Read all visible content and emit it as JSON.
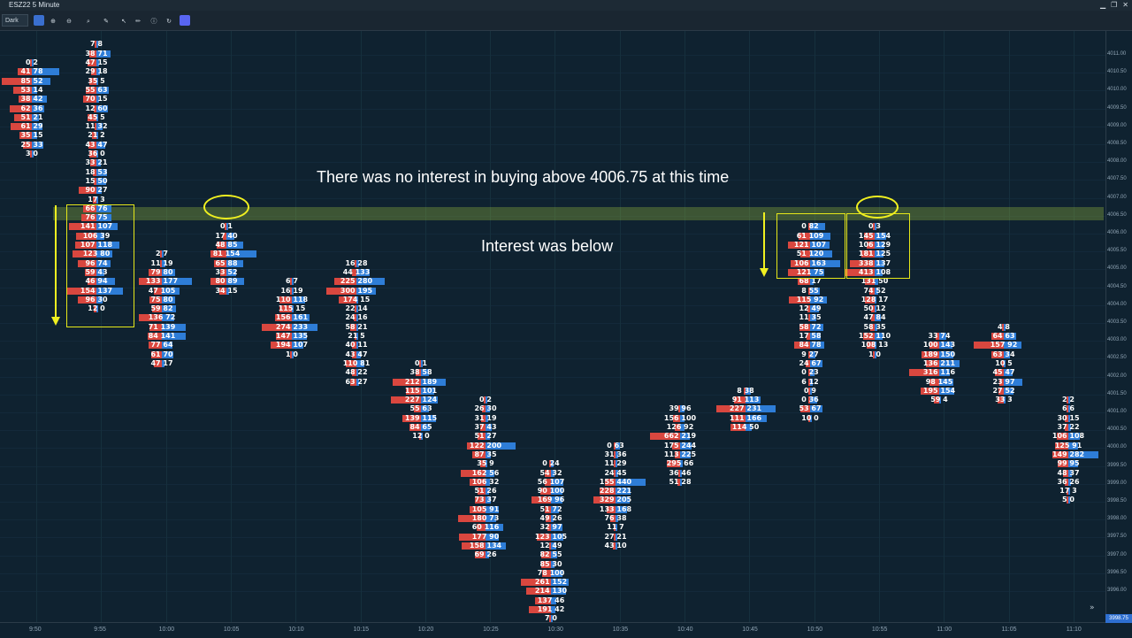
{
  "window": {
    "title": "ESZ22 5 Minute"
  },
  "toolbar": {
    "theme_label": "Dark",
    "icons": [
      "chart-style-icon",
      "zoom-in-icon",
      "zoom-out-icon",
      "magnifier-icon",
      "drawing-tool-icon",
      "pointer-icon",
      "pencil-icon",
      "info-icon",
      "refresh-icon",
      "discord-icon"
    ]
  },
  "annotations": {
    "top_text": "There was no interest in buying above 4006.75 at this time",
    "mid_text": "Interest was below"
  },
  "price_tag": "3998.75",
  "colors": {
    "background": "#0f2230",
    "sell": "#d9473f",
    "buy": "#2e7dd7",
    "highlight": "#e6e81a",
    "band": "#9abe3c"
  },
  "chart_data": {
    "type": "table",
    "instrument": "ESZ22",
    "timeframe": "5 Minute",
    "y_ticks": [
      "4011.00",
      "4010.50",
      "4010.00",
      "4009.50",
      "4009.00",
      "4008.50",
      "4008.00",
      "4007.50",
      "4007.00",
      "4006.50",
      "4006.00",
      "4005.50",
      "4005.00",
      "4004.50",
      "4004.00",
      "4003.50",
      "4003.00",
      "4002.50",
      "4002.00",
      "4001.50",
      "4001.00",
      "4000.50",
      "4000.00",
      "3999.50",
      "3999.00",
      "3998.50",
      "3998.00",
      "3997.50",
      "3997.00",
      "3996.50",
      "3996.00"
    ],
    "x_ticks": [
      "9:50",
      "9:55",
      "10:00",
      "10:05",
      "10:10",
      "10:15",
      "10:20",
      "10:25",
      "10:30",
      "10:35",
      "10:40",
      "10:45",
      "10:50",
      "10:55",
      "11:00",
      "11:05",
      "11:10"
    ],
    "bars": [
      {
        "time": "9:50",
        "x": 8,
        "top": 0,
        "rows": [
          [
            0,
            2
          ],
          [
            41,
            78
          ],
          [
            85,
            52
          ],
          [
            53,
            14
          ],
          [
            38,
            42
          ],
          [
            62,
            36
          ],
          [
            51,
            21
          ],
          [
            61,
            29
          ],
          [
            35,
            15
          ],
          [
            25,
            33
          ],
          [
            3,
            0
          ]
        ]
      },
      {
        "time": "9:55",
        "x": 81,
        "top": -2,
        "rows": [
          [
            7,
            8
          ],
          [
            38,
            71
          ],
          [
            47,
            15
          ],
          [
            29,
            18
          ],
          [
            35,
            5
          ],
          [
            55,
            63
          ],
          [
            70,
            15
          ],
          [
            12,
            60
          ],
          [
            45,
            5
          ],
          [
            11,
            32
          ],
          [
            21,
            2
          ],
          [
            43,
            47
          ],
          [
            36,
            0
          ],
          [
            33,
            21
          ],
          [
            18,
            53
          ],
          [
            15,
            50
          ],
          [
            90,
            27
          ],
          [
            17,
            3
          ],
          [
            66,
            76
          ],
          [
            76,
            75
          ],
          [
            141,
            107
          ],
          [
            106,
            39
          ],
          [
            107,
            118
          ],
          [
            123,
            80
          ],
          [
            96,
            74
          ],
          [
            59,
            43
          ],
          [
            46,
            94
          ],
          [
            154,
            137
          ],
          [
            96,
            30
          ],
          [
            12,
            0
          ]
        ]
      },
      {
        "time": "10:00",
        "x": 155,
        "top": 21,
        "rows": [
          [
            2,
            7
          ],
          [
            11,
            19
          ],
          [
            79,
            80
          ],
          [
            133,
            177
          ],
          [
            47,
            105
          ],
          [
            75,
            80
          ],
          [
            59,
            82
          ],
          [
            136,
            72
          ],
          [
            71,
            139
          ],
          [
            84,
            141
          ],
          [
            77,
            64
          ],
          [
            61,
            70
          ],
          [
            47,
            17
          ]
        ]
      },
      {
        "time": "10:05",
        "x": 228,
        "top": 18,
        "rows": [
          [
            0,
            1
          ],
          [
            17,
            40
          ],
          [
            48,
            85
          ],
          [
            81,
            154
          ],
          [
            65,
            88
          ],
          [
            33,
            52
          ],
          [
            80,
            89
          ],
          [
            34,
            15
          ]
        ]
      },
      {
        "time": "10:10",
        "x": 302,
        "top": 24,
        "rows": [
          [
            6,
            7
          ],
          [
            16,
            19
          ],
          [
            110,
            118
          ],
          [
            115,
            15
          ],
          [
            156,
            161
          ],
          [
            274,
            233
          ],
          [
            147,
            135
          ],
          [
            194,
            107
          ],
          [
            1,
            0
          ]
        ]
      },
      {
        "time": "10:15",
        "x": 375,
        "top": 22,
        "rows": [
          [
            16,
            28
          ],
          [
            44,
            133
          ],
          [
            225,
            280
          ],
          [
            300,
            195
          ],
          [
            174,
            15
          ],
          [
            22,
            14
          ],
          [
            24,
            16
          ],
          [
            58,
            21
          ],
          [
            21,
            5
          ],
          [
            40,
            11
          ],
          [
            43,
            47
          ],
          [
            110,
            81
          ],
          [
            48,
            22
          ],
          [
            63,
            27
          ]
        ]
      },
      {
        "time": "10:20",
        "x": 448,
        "top": 33,
        "rows": [
          [
            0,
            1
          ],
          [
            38,
            58
          ],
          [
            212,
            189
          ],
          [
            115,
            101
          ],
          [
            227,
            124
          ],
          [
            55,
            63
          ],
          [
            139,
            115
          ],
          [
            84,
            65
          ],
          [
            12,
            0
          ]
        ]
      },
      {
        "time": "10:25",
        "x": 521,
        "top": 37,
        "rows": [
          [
            0,
            2
          ],
          [
            26,
            30
          ],
          [
            31,
            19
          ],
          [
            37,
            43
          ],
          [
            51,
            27
          ],
          [
            122,
            200
          ],
          [
            87,
            35
          ],
          [
            35,
            9
          ],
          [
            162,
            56
          ],
          [
            106,
            32
          ],
          [
            51,
            26
          ],
          [
            73,
            37
          ],
          [
            105,
            91
          ],
          [
            180,
            73
          ],
          [
            60,
            116
          ],
          [
            177,
            90
          ],
          [
            158,
            134
          ],
          [
            69,
            26
          ]
        ]
      },
      {
        "time": "10:30",
        "x": 595,
        "top": 44,
        "rows": [
          [
            0,
            24
          ],
          [
            54,
            32
          ],
          [
            56,
            107
          ],
          [
            90,
            100
          ],
          [
            169,
            96
          ],
          [
            51,
            72
          ],
          [
            49,
            26
          ],
          [
            32,
            97
          ],
          [
            123,
            105
          ],
          [
            12,
            49
          ],
          [
            82,
            55
          ],
          [
            85,
            30
          ],
          [
            78,
            100
          ],
          [
            261,
            152
          ],
          [
            214,
            130
          ],
          [
            137,
            46
          ],
          [
            191,
            42
          ],
          [
            7,
            0
          ]
        ]
      },
      {
        "time": "10:35",
        "x": 668,
        "top": 42,
        "rows": [
          [
            0,
            63
          ],
          [
            31,
            36
          ],
          [
            11,
            29
          ],
          [
            24,
            45
          ],
          [
            155,
            440
          ],
          [
            228,
            221
          ],
          [
            329,
            205
          ],
          [
            133,
            168
          ],
          [
            76,
            38
          ],
          [
            11,
            7
          ],
          [
            27,
            21
          ],
          [
            43,
            10
          ]
        ]
      },
      {
        "time": "10:40",
        "x": 741,
        "top": 38,
        "rows": [
          [
            39,
            96
          ],
          [
            156,
            100
          ],
          [
            126,
            92
          ],
          [
            662,
            219
          ],
          [
            175,
            244
          ],
          [
            113,
            225
          ],
          [
            295,
            66
          ],
          [
            36,
            46
          ],
          [
            51,
            28
          ]
        ]
      },
      {
        "time": "10:45",
        "x": 815,
        "top": 36,
        "rows": [
          [
            8,
            38
          ],
          [
            91,
            113
          ],
          [
            227,
            231
          ],
          [
            111,
            166
          ],
          [
            114,
            50
          ]
        ]
      },
      {
        "time": "10:50",
        "x": 888,
        "top": 18,
        "rows": [
          [
            0,
            82
          ],
          [
            61,
            109
          ],
          [
            121,
            107
          ],
          [
            51,
            120
          ],
          [
            106,
            163
          ],
          [
            121,
            75
          ],
          [
            68,
            17
          ],
          [
            8,
            55
          ],
          [
            115,
            92
          ],
          [
            12,
            49
          ],
          [
            11,
            35
          ],
          [
            58,
            72
          ],
          [
            17,
            58
          ],
          [
            84,
            78
          ],
          [
            9,
            27
          ],
          [
            24,
            67
          ],
          [
            0,
            23
          ],
          [
            6,
            12
          ],
          [
            0,
            9
          ],
          [
            0,
            36
          ],
          [
            53,
            67
          ],
          [
            10,
            0
          ]
        ]
      },
      {
        "time": "10:55",
        "x": 961,
        "top": 18,
        "rows": [
          [
            0,
            3
          ],
          [
            145,
            154
          ],
          [
            106,
            129
          ],
          [
            181,
            125
          ],
          [
            338,
            137
          ],
          [
            413,
            108
          ],
          [
            131,
            50
          ],
          [
            74,
            52
          ],
          [
            128,
            17
          ],
          [
            50,
            12
          ],
          [
            47,
            84
          ],
          [
            58,
            35
          ],
          [
            152,
            110
          ],
          [
            108,
            13
          ],
          [
            1,
            0
          ]
        ]
      },
      {
        "time": "11:00",
        "x": 1034,
        "top": 30,
        "rows": [
          [
            33,
            74
          ],
          [
            100,
            143
          ],
          [
            189,
            150
          ],
          [
            136,
            211
          ],
          [
            316,
            116
          ],
          [
            98,
            145
          ],
          [
            195,
            154
          ],
          [
            59,
            4
          ]
        ]
      },
      {
        "time": "11:05",
        "x": 1107,
        "top": 29,
        "rows": [
          [
            4,
            8
          ],
          [
            64,
            63
          ],
          [
            157,
            92
          ],
          [
            63,
            34
          ],
          [
            10,
            5
          ],
          [
            45,
            47
          ],
          [
            23,
            97
          ],
          [
            27,
            52
          ],
          [
            33,
            3
          ]
        ]
      },
      {
        "time": "11:10",
        "x": 1180,
        "top": 37,
        "rows": [
          [
            2,
            2
          ],
          [
            6,
            6
          ],
          [
            30,
            15
          ],
          [
            37,
            22
          ],
          [
            106,
            108
          ],
          [
            125,
            91
          ],
          [
            149,
            282
          ],
          [
            99,
            95
          ],
          [
            48,
            37
          ],
          [
            36,
            26
          ],
          [
            17,
            3
          ],
          [
            5,
            0
          ]
        ]
      }
    ]
  }
}
